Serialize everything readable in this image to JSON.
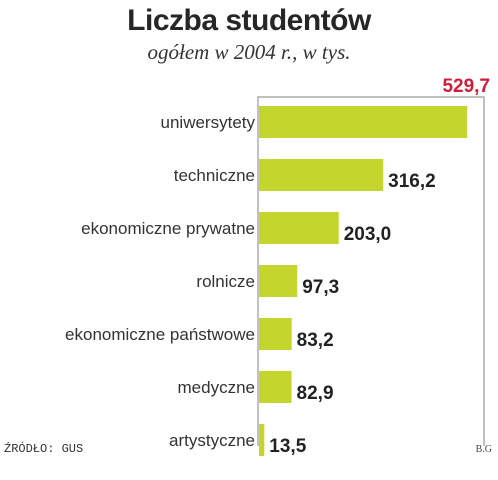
{
  "title": "Liczba studentów",
  "subtitle": "ogółem w 2004 r., w tys.",
  "source": "ŹRÓDŁO: GUS",
  "credit": "B.G",
  "colors": {
    "bar": "#c4d62e",
    "max_value": "#d21c3a",
    "frame": "#9a9a9a"
  },
  "chart_data": {
    "type": "bar",
    "orientation": "horizontal",
    "categories": [
      "uniwersytety",
      "techniczne",
      "ekonomiczne prywatne",
      "rolnicze",
      "ekonomiczne państwowe",
      "medyczne",
      "artystyczne"
    ],
    "values": [
      529.7,
      316.2,
      203.0,
      97.3,
      83.2,
      82.9,
      13.5
    ],
    "value_labels": [
      "529,7",
      "316,2",
      "203,0",
      "97,3",
      "83,2",
      "82,9",
      "13,5"
    ],
    "xlim": [
      0,
      529.7
    ],
    "grid": false,
    "legend": "none"
  }
}
